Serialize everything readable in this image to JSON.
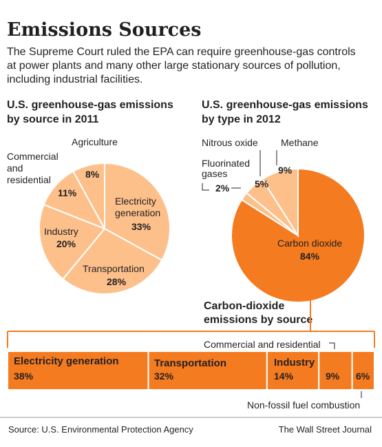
{
  "header": {
    "title": "Emissions Sources",
    "lede": [
      "The Supreme Court ruled the EPA can require greenhouse-gas controls",
      "at power plants and many other large stationary sources of pollution,",
      "including industrial facilities."
    ]
  },
  "footer": {
    "source": "Source: U.S. Environmental Protection Agency",
    "credit": "The Wall Street Journal"
  },
  "colors": {
    "pie_light": "#fdc08b",
    "pie_light_edge": "#ffffff",
    "orange": "#f47b20",
    "stroke": "#f47b20"
  },
  "chart_data": [
    {
      "type": "pie",
      "title": [
        "U.S. greenhouse-gas emissions",
        "by source in 2011"
      ],
      "series": [
        {
          "name": "Electricity generation",
          "value": 33,
          "label": "33%"
        },
        {
          "name": "Transportation",
          "value": 28,
          "label": "28%"
        },
        {
          "name": "Industry",
          "value": 20,
          "label": "20%"
        },
        {
          "name": "Commercial and residential",
          "value": 11,
          "label": "11%"
        },
        {
          "name": "Agriculture",
          "value": 8,
          "label": "8%"
        }
      ]
    },
    {
      "type": "pie",
      "title": [
        "U.S. greenhouse-gas emissions",
        "by type in 2012"
      ],
      "series": [
        {
          "name": "Carbon dioxide",
          "value": 84,
          "label": "84%"
        },
        {
          "name": "Fluorinated gases",
          "value": 2,
          "label": "2%"
        },
        {
          "name": "Nitrous oxide",
          "value": 5,
          "label": "5%"
        },
        {
          "name": "Methane",
          "value": 9,
          "label": "9%"
        }
      ]
    },
    {
      "type": "bar",
      "title": [
        "Carbon-dioxide",
        "emissions by source"
      ],
      "series": [
        {
          "name": "Electricity generation",
          "value": 38,
          "label": "38%"
        },
        {
          "name": "Transportation",
          "value": 32,
          "label": "32%"
        },
        {
          "name": "Industry",
          "value": 14,
          "label": "14%"
        },
        {
          "name": "Commercial and residential",
          "value": 9,
          "label": "9%"
        },
        {
          "name": "Non-fossil fuel combustion",
          "value": 6,
          "label": "6%"
        }
      ]
    }
  ]
}
